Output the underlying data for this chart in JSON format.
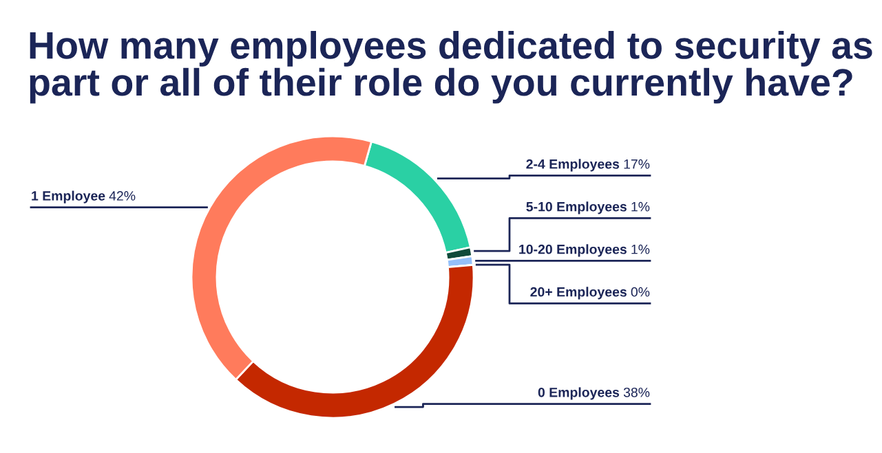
{
  "chart_data": {
    "type": "donut",
    "title": "How many employees dedicated to security as part or all of their role do you currently have?",
    "categories": [
      "2-4 Employees",
      "5-10 Employees",
      "10-20 Employees",
      "20+ Employees",
      "0 Employees",
      "1 Employee"
    ],
    "values": [
      17,
      1,
      1,
      0,
      38,
      42
    ],
    "colors": [
      "#2ad0a4",
      "#0f4a3a",
      "#94c0fa",
      "#1b2557",
      "#c42800",
      "#ff7b5c"
    ],
    "value_labels": [
      "17%",
      "1%",
      "1%",
      "0%",
      "38%",
      "42%"
    ]
  }
}
